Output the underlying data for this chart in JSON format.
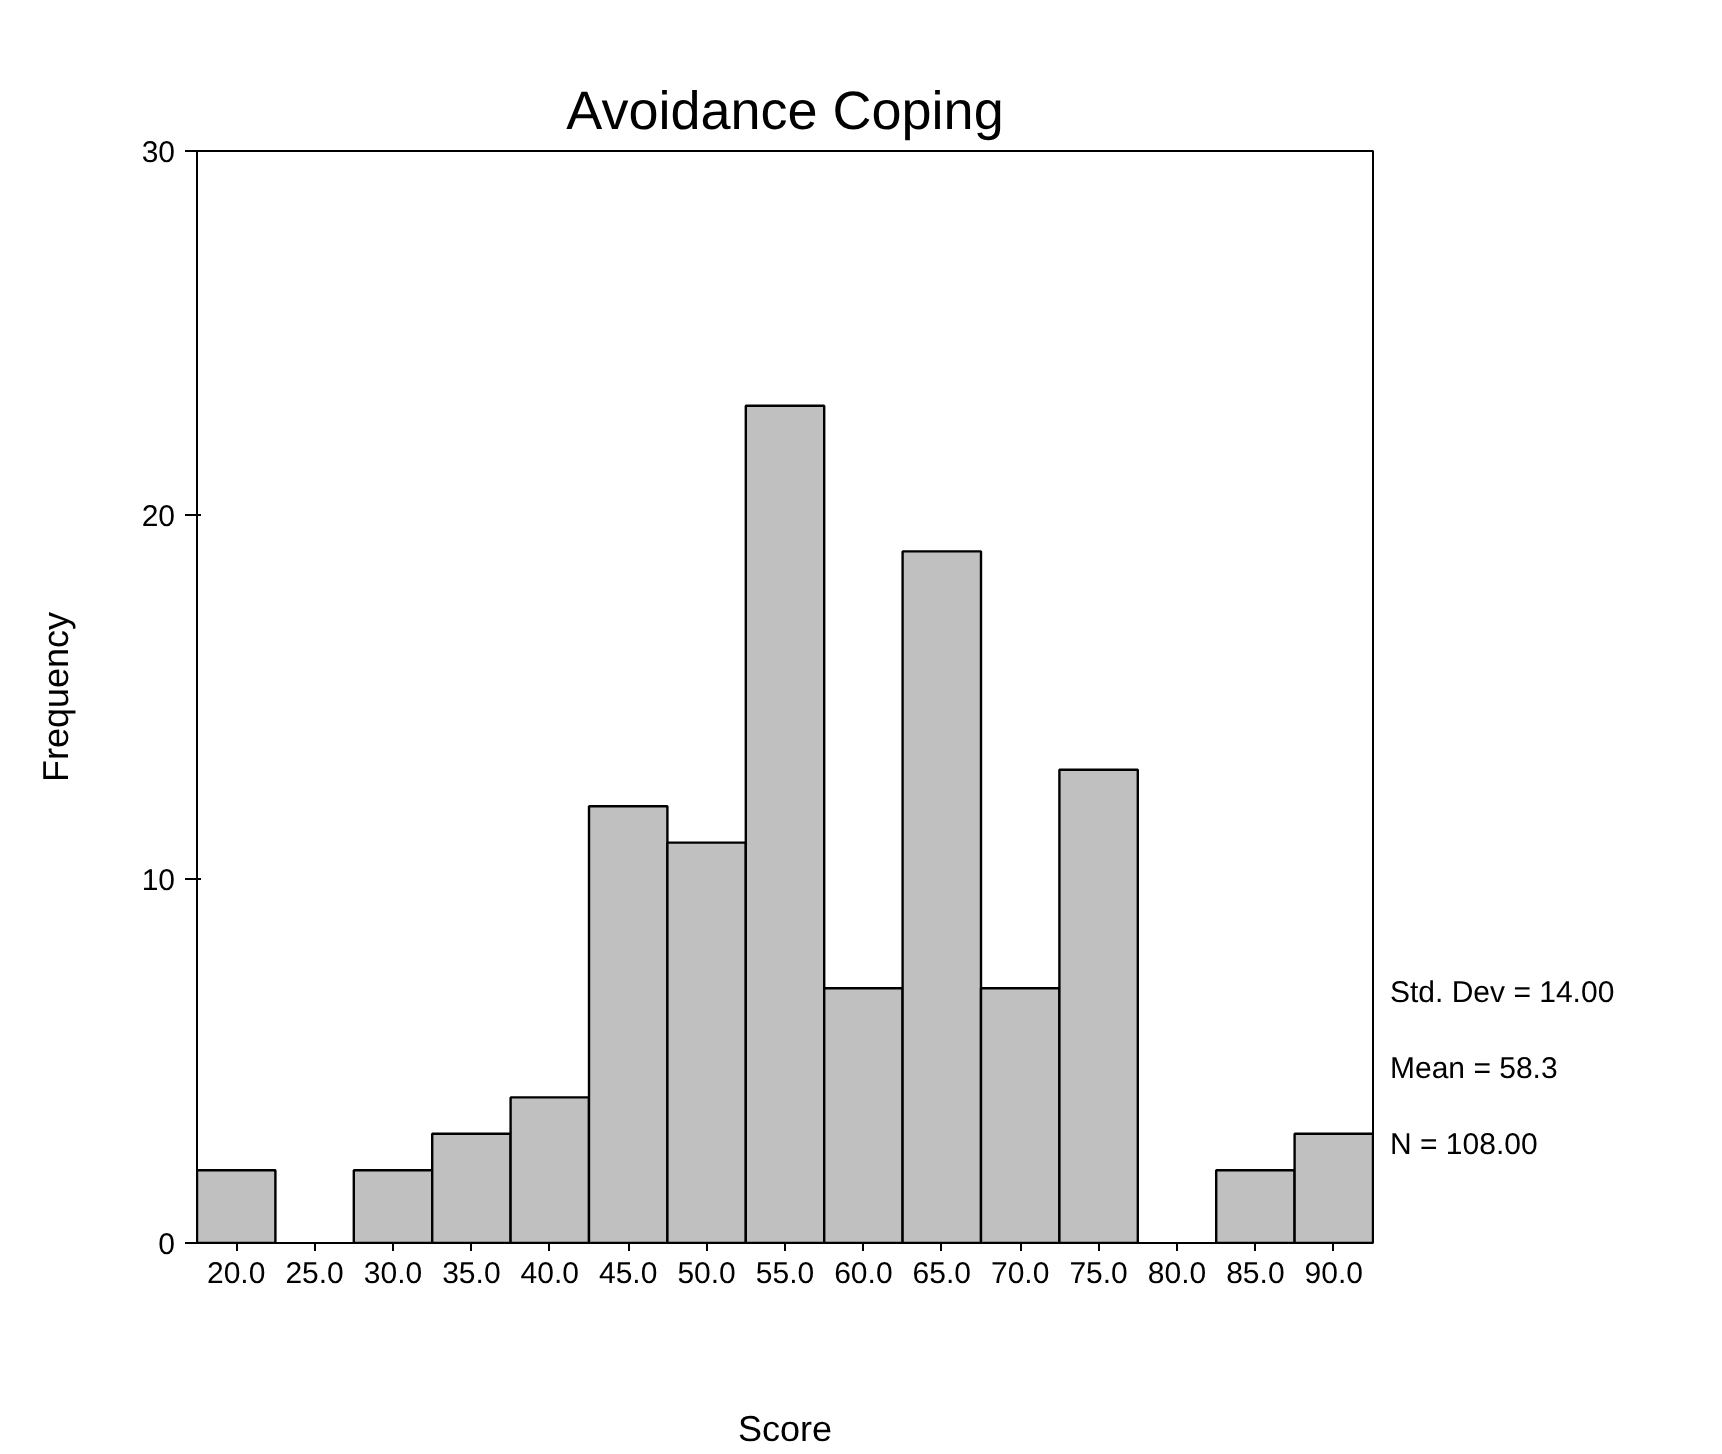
{
  "chart_data": {
    "type": "histogram",
    "title": "Avoidance Coping",
    "xlabel": "Score",
    "ylabel": "Frequency",
    "bins": [
      17.5,
      22.5,
      27.5,
      32.5,
      37.5,
      42.5,
      47.5,
      52.5,
      57.5,
      62.5,
      67.5,
      72.5,
      77.5,
      82.5,
      87.5,
      92.5
    ],
    "values": [
      2,
      0,
      2,
      3,
      4,
      12,
      11,
      23,
      7,
      19,
      7,
      13,
      0,
      2,
      3
    ],
    "color": "#c0c0c0",
    "xlim": [
      17.5,
      92.5
    ],
    "xticks": [
      {
        "value": 20,
        "label": "20.0"
      },
      {
        "value": 25,
        "label": "25.0"
      },
      {
        "value": 30,
        "label": "30.0"
      },
      {
        "value": 35,
        "label": "35.0"
      },
      {
        "value": 40,
        "label": "40.0"
      },
      {
        "value": 45,
        "label": "45.0"
      },
      {
        "value": 50,
        "label": "50.0"
      },
      {
        "value": 55,
        "label": "55.0"
      },
      {
        "value": 60,
        "label": "60.0"
      },
      {
        "value": 65,
        "label": "65.0"
      },
      {
        "value": 70,
        "label": "70.0"
      },
      {
        "value": 75,
        "label": "75.0"
      },
      {
        "value": 80,
        "label": "80.0"
      },
      {
        "value": 85,
        "label": "85.0"
      },
      {
        "value": 90,
        "label": "90.0"
      }
    ],
    "ylim": [
      0,
      30
    ],
    "yticks": [
      0,
      10,
      20,
      30
    ],
    "grid": false,
    "annotations": [
      "Std. Dev = 14.00",
      "Mean = 58.3",
      "N = 108.00"
    ]
  }
}
